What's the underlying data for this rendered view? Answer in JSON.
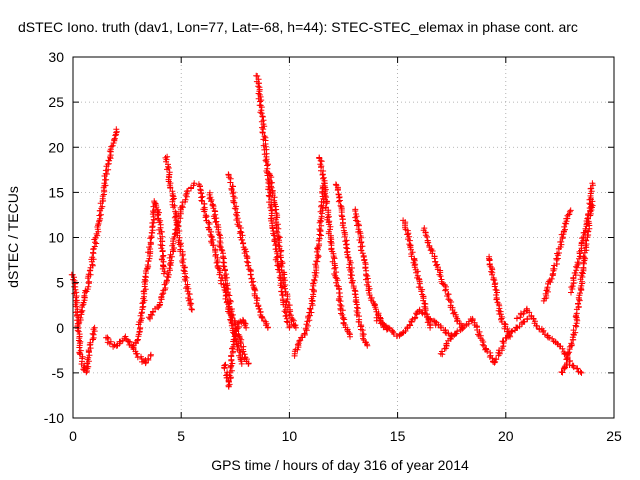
{
  "chart_data": {
    "type": "scatter",
    "title": "dSTEC Iono. truth (dav1, Lon=77, Lat=-68, h=44): STEC-STEC_elemax in phase cont. arc",
    "xlabel": "GPS time / hours of day 316 of year 2014",
    "ylabel": "dSTEC  / TECUs",
    "xlim": [
      0,
      25
    ],
    "ylim": [
      -10,
      30
    ],
    "xticks": [
      0,
      5,
      10,
      15,
      20,
      25
    ],
    "yticks": [
      -10,
      -5,
      0,
      5,
      10,
      15,
      20,
      25,
      30
    ],
    "grid": true,
    "marker": "+",
    "color": "#ff0000",
    "series": [
      {
        "x": [
          0.0,
          0.1,
          0.2,
          0.3,
          0.4,
          0.5,
          0.6,
          0.7,
          0.8,
          0.9,
          1.0
        ],
        "y": [
          6,
          4,
          1,
          -2,
          -3.5,
          -4.5,
          -5,
          -4,
          -2,
          -1,
          0
        ]
      },
      {
        "x": [
          0.2,
          0.4,
          0.6,
          0.8,
          1.0,
          1.2,
          1.4,
          1.6,
          1.8,
          2.0
        ],
        "y": [
          0,
          2,
          4,
          6,
          9,
          12,
          15,
          18,
          20,
          22
        ]
      },
      {
        "x": [
          1.5,
          1.8,
          2.1,
          2.4,
          2.7,
          3.0,
          3.3,
          3.6
        ],
        "y": [
          -1,
          -2,
          -2,
          -1,
          -2,
          -3,
          -4,
          -3
        ]
      },
      {
        "x": [
          2.8,
          3.0,
          3.2,
          3.4,
          3.6,
          3.8,
          4.0,
          4.2
        ],
        "y": [
          -2,
          -1,
          2,
          6,
          10,
          14,
          12,
          6
        ]
      },
      {
        "x": [
          3.5,
          3.8,
          4.1,
          4.4,
          4.7,
          5.0,
          5.3,
          5.6
        ],
        "y": [
          1,
          2,
          3,
          6,
          10,
          13,
          15,
          16
        ]
      },
      {
        "x": [
          4.3,
          4.5,
          4.7,
          4.9,
          5.1,
          5.3,
          5.5
        ],
        "y": [
          19,
          16,
          13,
          10,
          7,
          4,
          2
        ]
      },
      {
        "x": [
          5.8,
          6.0,
          6.2,
          6.4,
          6.6,
          6.8,
          7.0,
          7.2,
          7.4,
          7.6,
          7.8
        ],
        "y": [
          16,
          14,
          12,
          10,
          8,
          6,
          4,
          2,
          0,
          -2,
          -4
        ]
      },
      {
        "x": [
          6.3,
          6.5,
          6.7,
          6.9,
          7.1,
          7.3,
          7.5,
          7.7,
          7.9,
          8.1
        ],
        "y": [
          15,
          13,
          11,
          8,
          5,
          2,
          0,
          -1,
          -3,
          -4
        ]
      },
      {
        "x": [
          7.0,
          7.2,
          7.3,
          7.4,
          7.6,
          7.8,
          8.0
        ],
        "y": [
          -4,
          -6.5,
          -5,
          -2,
          0,
          1,
          0
        ]
      },
      {
        "x": [
          7.2,
          7.4,
          7.6,
          7.8,
          8.0,
          8.2,
          8.4,
          8.6,
          8.8,
          9.0
        ],
        "y": [
          17,
          15,
          12,
          10,
          8,
          6,
          4,
          2,
          1,
          0
        ]
      },
      {
        "x": [
          8.5,
          8.6,
          8.8,
          9.0,
          9.2,
          9.4,
          9.6,
          9.8,
          10.0
        ],
        "y": [
          28,
          26,
          22,
          17,
          12,
          8,
          5,
          2,
          0
        ]
      },
      {
        "x": [
          9.1,
          9.3,
          9.5,
          9.7,
          9.9,
          10.1,
          10.3
        ],
        "y": [
          17,
          14,
          10,
          6,
          3,
          1,
          0
        ]
      },
      {
        "x": [
          10.2,
          10.4,
          10.6,
          10.8,
          11.0,
          11.2,
          11.4,
          11.6
        ],
        "y": [
          -3,
          -2,
          -1,
          0,
          2,
          6,
          10,
          16
        ]
      },
      {
        "x": [
          11.4,
          11.6,
          11.8,
          12.0,
          12.2,
          12.4,
          12.6,
          12.8
        ],
        "y": [
          19,
          16,
          12,
          8,
          5,
          2,
          0,
          -1
        ]
      },
      {
        "x": [
          12.2,
          12.4,
          12.6,
          12.8,
          13.0,
          13.2,
          13.4,
          13.6
        ],
        "y": [
          16,
          13,
          10,
          7,
          4,
          1,
          -1,
          -2
        ]
      },
      {
        "x": [
          13.0,
          13.2,
          13.4,
          13.6,
          13.8,
          14.0,
          14.2,
          14.4,
          14.6
        ],
        "y": [
          13,
          11,
          8,
          5,
          3,
          2,
          1,
          0,
          0
        ]
      },
      {
        "x": [
          14.0,
          14.5,
          15.0,
          15.5,
          16.0,
          16.5,
          17.0,
          17.5
        ],
        "y": [
          1,
          0,
          -1,
          0,
          2,
          1,
          0,
          -1
        ]
      },
      {
        "x": [
          15.3,
          15.5,
          15.7,
          15.9,
          16.1,
          16.3,
          16.5
        ],
        "y": [
          12,
          10,
          8,
          6,
          4,
          2,
          0
        ]
      },
      {
        "x": [
          16.2,
          16.5,
          16.8,
          17.1,
          17.4,
          17.7,
          18.0
        ],
        "y": [
          11,
          9,
          7,
          5,
          3,
          1,
          0
        ]
      },
      {
        "x": [
          17.0,
          17.5,
          18.0,
          18.5,
          19.0,
          19.5,
          20.0,
          20.5,
          21.0
        ],
        "y": [
          -3,
          -1,
          0,
          1,
          -2,
          -4,
          -1,
          0,
          1
        ]
      },
      {
        "x": [
          19.2,
          19.4,
          19.6,
          19.8,
          20.0,
          20.2
        ],
        "y": [
          8,
          6,
          3,
          1,
          0,
          -1
        ]
      },
      {
        "x": [
          20.5,
          21.0,
          21.5,
          22.0,
          22.5,
          23.0,
          23.5
        ],
        "y": [
          1,
          2,
          0,
          -1,
          -2,
          -4,
          -5
        ]
      },
      {
        "x": [
          21.8,
          22.0,
          22.2,
          22.4,
          22.6,
          22.8,
          23.0
        ],
        "y": [
          3,
          5,
          6,
          8,
          10,
          12,
          13
        ]
      },
      {
        "x": [
          22.6,
          22.8,
          23.0,
          23.2,
          23.4,
          23.6,
          23.8,
          24.0
        ],
        "y": [
          -5,
          -4,
          -2,
          0,
          3,
          7,
          11,
          16
        ]
      },
      {
        "x": [
          23.0,
          23.2,
          23.4,
          23.6,
          23.8,
          24.0
        ],
        "y": [
          4,
          6,
          8,
          10,
          12,
          14
        ]
      }
    ]
  }
}
